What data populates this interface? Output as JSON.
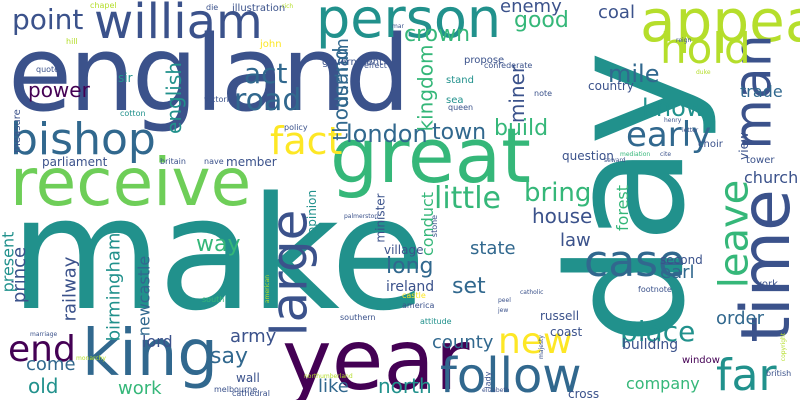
{
  "colors": {
    "background": "#ffffff",
    "palette": {
      "dark_purple": "#440154",
      "indigo": "#3b528b",
      "blue": "#31688e",
      "teal": "#21918c",
      "green": "#35b779",
      "lime": "#6ece58",
      "yellow_green": "#b5de2b",
      "yellow": "#fde725"
    }
  },
  "words": [
    {
      "text": "make",
      "color": "#21918c"
    },
    {
      "text": "day",
      "color": "#21918c"
    },
    {
      "text": "england",
      "color": "#3b528b"
    },
    {
      "text": "person",
      "color": "#21918c"
    },
    {
      "text": "year",
      "color": "#440154"
    },
    {
      "text": "receive",
      "color": "#6ece58"
    },
    {
      "text": "great",
      "color": "#35b779"
    },
    {
      "text": "time",
      "color": "#3b528b"
    },
    {
      "text": "king",
      "color": "#31688e"
    },
    {
      "text": "william",
      "color": "#3b528b"
    },
    {
      "text": "appear",
      "color": "#b5de2b"
    },
    {
      "text": "bishop",
      "color": "#31688e"
    },
    {
      "text": "follow",
      "color": "#31688e"
    },
    {
      "text": "man",
      "color": "#3b528b"
    },
    {
      "text": "hold",
      "color": "#b5de2b"
    },
    {
      "text": "case",
      "color": "#31688e"
    },
    {
      "text": "large",
      "color": "#3b528b"
    },
    {
      "text": "far",
      "color": "#21918c"
    },
    {
      "text": "leave",
      "color": "#35b779"
    },
    {
      "text": "early",
      "color": "#31688e"
    },
    {
      "text": "fact",
      "color": "#fde725"
    },
    {
      "text": "new",
      "color": "#fde725"
    },
    {
      "text": "end",
      "color": "#440154"
    },
    {
      "text": "point",
      "color": "#3b528b"
    },
    {
      "text": "little",
      "color": "#35b779"
    },
    {
      "text": "act",
      "color": "#31688e"
    },
    {
      "text": "road",
      "color": "#31688e"
    },
    {
      "text": "place",
      "color": "#21918c"
    },
    {
      "text": "good",
      "color": "#35b779"
    },
    {
      "text": "crown",
      "color": "#35b779"
    },
    {
      "text": "london",
      "color": "#31688e"
    },
    {
      "text": "town",
      "color": "#31688e"
    },
    {
      "text": "build",
      "color": "#35b779"
    },
    {
      "text": "bring",
      "color": "#35b779"
    },
    {
      "text": "know",
      "color": "#21918c"
    },
    {
      "text": "mile",
      "color": "#31688e"
    },
    {
      "text": "power",
      "color": "#440154"
    },
    {
      "text": "english",
      "color": "#21918c"
    },
    {
      "text": "thousand",
      "color": "#31688e"
    },
    {
      "text": "durham",
      "color": "#31688e"
    },
    {
      "text": "kingdom",
      "color": "#35b779"
    },
    {
      "text": "miner",
      "color": "#3b528b"
    },
    {
      "text": "enemy",
      "color": "#3b528b"
    },
    {
      "text": "coal",
      "color": "#3b528b"
    },
    {
      "text": "trade",
      "color": "#31688e"
    },
    {
      "text": "church",
      "color": "#3b528b"
    },
    {
      "text": "house",
      "color": "#3b528b"
    },
    {
      "text": "way",
      "color": "#35b779"
    },
    {
      "text": "long",
      "color": "#31688e"
    },
    {
      "text": "set",
      "color": "#31688e"
    },
    {
      "text": "law",
      "color": "#3b528b"
    },
    {
      "text": "state",
      "color": "#31688e"
    },
    {
      "text": "earl",
      "color": "#31688e"
    },
    {
      "text": "order",
      "color": "#31688e"
    },
    {
      "text": "county",
      "color": "#31688e"
    },
    {
      "text": "army",
      "color": "#3b528b"
    },
    {
      "text": "say",
      "color": "#31688e"
    },
    {
      "text": "like",
      "color": "#31688e"
    },
    {
      "text": "north",
      "color": "#21918c"
    },
    {
      "text": "work",
      "color": "#35b779"
    },
    {
      "text": "come",
      "color": "#31688e"
    },
    {
      "text": "old",
      "color": "#21918c"
    },
    {
      "text": "prince",
      "color": "#3b528b"
    },
    {
      "text": "present",
      "color": "#21918c"
    },
    {
      "text": "railway",
      "color": "#3b528b"
    },
    {
      "text": "birmingham",
      "color": "#21918c"
    },
    {
      "text": "newcastle",
      "color": "#31688e"
    },
    {
      "text": "lord",
      "color": "#3b528b"
    },
    {
      "text": "company",
      "color": "#35b779"
    },
    {
      "text": "building",
      "color": "#3b528b"
    },
    {
      "text": "forest",
      "color": "#35b779"
    },
    {
      "text": "conduct",
      "color": "#35b779"
    },
    {
      "text": "minister",
      "color": "#3b528b"
    },
    {
      "text": "opinion",
      "color": "#21918c"
    },
    {
      "text": "parliament",
      "color": "#3b528b"
    },
    {
      "text": "member",
      "color": "#3b528b"
    },
    {
      "text": "wall",
      "color": "#3b528b"
    },
    {
      "text": "ireland",
      "color": "#3b528b"
    },
    {
      "text": "village",
      "color": "#3b528b"
    },
    {
      "text": "russell",
      "color": "#3b528b"
    },
    {
      "text": "coast",
      "color": "#3b528b"
    },
    {
      "text": "cross",
      "color": "#3b528b"
    },
    {
      "text": "window",
      "color": "#440154"
    },
    {
      "text": "second",
      "color": "#3b528b"
    },
    {
      "text": "question",
      "color": "#3b528b"
    },
    {
      "text": "view",
      "color": "#3b528b"
    },
    {
      "text": "tower",
      "color": "#3b528b"
    },
    {
      "text": "york",
      "color": "#3b528b"
    },
    {
      "text": "choir",
      "color": "#3b528b"
    },
    {
      "text": "country",
      "color": "#3b528b"
    },
    {
      "text": "sea",
      "color": "#21918c"
    },
    {
      "text": "stand",
      "color": "#21918c"
    },
    {
      "text": "government",
      "color": "#3b528b"
    },
    {
      "text": "propose",
      "color": "#3b528b"
    },
    {
      "text": "illustration",
      "color": "#3b528b"
    },
    {
      "text": "john",
      "color": "#fde725"
    },
    {
      "text": "sir",
      "color": "#21918c"
    },
    {
      "text": "measure",
      "color": "#3b528b"
    },
    {
      "text": "quote",
      "color": "#3b528b"
    },
    {
      "text": "cotton",
      "color": "#21918c"
    },
    {
      "text": "hill",
      "color": "#b5de2b"
    },
    {
      "text": "chapel",
      "color": "#b5de2b"
    },
    {
      "text": "die",
      "color": "#3b528b"
    },
    {
      "text": "effect",
      "color": "#3b528b"
    },
    {
      "text": "confederate",
      "color": "#3b528b"
    },
    {
      "text": "note",
      "color": "#3b528b"
    },
    {
      "text": "queen",
      "color": "#3b528b"
    },
    {
      "text": "america",
      "color": "#3b528b"
    },
    {
      "text": "castle",
      "color": "#fde725"
    },
    {
      "text": "attitude",
      "color": "#21918c"
    },
    {
      "text": "southern",
      "color": "#3b528b"
    },
    {
      "text": "cathedral",
      "color": "#3b528b"
    },
    {
      "text": "south",
      "color": "#35b779"
    },
    {
      "text": "britain",
      "color": "#3b528b"
    },
    {
      "text": "nave",
      "color": "#3b528b"
    },
    {
      "text": "policy",
      "color": "#3b528b"
    },
    {
      "text": "victoria",
      "color": "#3b528b"
    },
    {
      "text": "melbourne",
      "color": "#3b528b"
    },
    {
      "text": "lady",
      "color": "#3b528b"
    },
    {
      "text": "stone",
      "color": "#3b528b"
    },
    {
      "text": "footnote",
      "color": "#3b528b"
    },
    {
      "text": "british",
      "color": "#3b528b"
    },
    {
      "text": "letter",
      "color": "#3b528b"
    },
    {
      "text": "henry",
      "color": "#3b528b"
    },
    {
      "text": "seward",
      "color": "#3b528b"
    },
    {
      "text": "mediation",
      "color": "#35b779"
    },
    {
      "text": "cite",
      "color": "#3b528b"
    },
    {
      "text": "duke",
      "color": "#b5de2b"
    },
    {
      "text": "reign",
      "color": "#3b528b"
    },
    {
      "text": "palmerston",
      "color": "#3b528b"
    },
    {
      "text": "american",
      "color": "#b5de2b"
    },
    {
      "text": "mar",
      "color": "#3b528b"
    },
    {
      "text": "peel",
      "color": "#3b528b"
    },
    {
      "text": "jew",
      "color": "#3b528b"
    },
    {
      "text": "catholic",
      "color": "#3b528b"
    },
    {
      "text": "majesty",
      "color": "#3b528b"
    },
    {
      "text": "copyright",
      "color": "#b5de2b"
    },
    {
      "text": "marriage",
      "color": "#3b528b"
    },
    {
      "text": "elizabeth",
      "color": "#3b528b"
    },
    {
      "text": "monarchy",
      "color": "#b5de2b"
    },
    {
      "text": "northumberland",
      "color": "#b5de2b"
    },
    {
      "text": "rich",
      "color": "#b5de2b"
    }
  ]
}
